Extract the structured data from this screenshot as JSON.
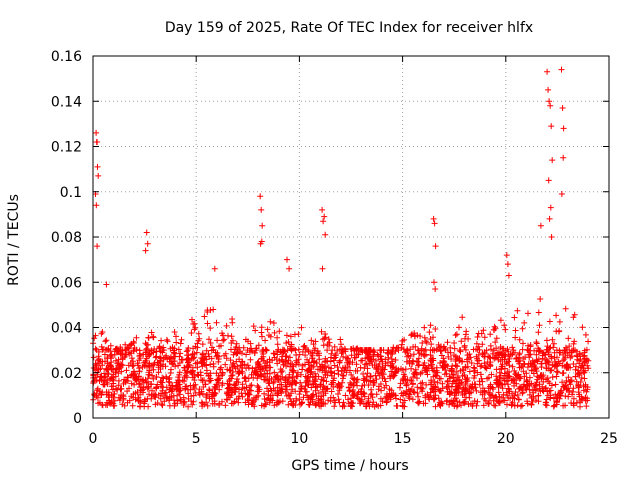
{
  "chart_data": {
    "type": "scatter",
    "title": "Day 159 of 2025, Rate Of TEC Index for receiver hlfx",
    "xlabel": "GPS time / hours",
    "ylabel": "ROTI / TECUs",
    "xlim": [
      0,
      25
    ],
    "ylim": [
      0,
      0.16
    ],
    "xticks": [
      0,
      5,
      10,
      15,
      20,
      25
    ],
    "xtick_labels": [
      "0",
      "5",
      "10",
      "15",
      "20",
      "25"
    ],
    "yticks": [
      0,
      0.02,
      0.04,
      0.06,
      0.08,
      0.1,
      0.12,
      0.14,
      0.16
    ],
    "ytick_labels": [
      "0",
      "0.02",
      "0.04",
      "0.06",
      "0.08",
      "0.1",
      "0.12",
      "0.14",
      "0.16"
    ],
    "grid": true,
    "marker": "+",
    "color": "#ff0000",
    "series": [
      {
        "name": "ROTI",
        "dense_band": {
          "x_range": [
            0,
            24
          ],
          "typical_range": [
            0.005,
            0.03
          ],
          "upper_envelope": [
            [
              0,
              0.045
            ],
            [
              1,
              0.03
            ],
            [
              2,
              0.035
            ],
            [
              3,
              0.04
            ],
            [
              4,
              0.042
            ],
            [
              5,
              0.045
            ],
            [
              6,
              0.05
            ],
            [
              7,
              0.045
            ],
            [
              8,
              0.04
            ],
            [
              9,
              0.045
            ],
            [
              10,
              0.04
            ],
            [
              11,
              0.04
            ],
            [
              12,
              0.035
            ],
            [
              13,
              0.03
            ],
            [
              14,
              0.03
            ],
            [
              15,
              0.035
            ],
            [
              16,
              0.04
            ],
            [
              17,
              0.045
            ],
            [
              18,
              0.045
            ],
            [
              19,
              0.04
            ],
            [
              20,
              0.045
            ],
            [
              21,
              0.05
            ],
            [
              22,
              0.06
            ],
            [
              23,
              0.055
            ],
            [
              24,
              0.035
            ]
          ]
        },
        "x": [
          0.15,
          0.18,
          0.2,
          0.22,
          0.12,
          0.16,
          0.25,
          0.2,
          0.65,
          2.6,
          2.55,
          2.65,
          5.9,
          8.1,
          8.15,
          8.2,
          8.12,
          8.18,
          9.4,
          9.5,
          11.1,
          11.2,
          11.15,
          11.25,
          11.12,
          16.5,
          16.55,
          16.6,
          16.52,
          16.58,
          20.05,
          20.1,
          20.15,
          21.7,
          22.0,
          22.05,
          22.1,
          22.15,
          22.2,
          22.25,
          22.08,
          22.18,
          22.12,
          22.22,
          22.7,
          22.75,
          22.8,
          22.78,
          22.72
        ],
        "y": [
          0.126,
          0.122,
          0.122,
          0.111,
          0.099,
          0.094,
          0.107,
          0.076,
          0.059,
          0.082,
          0.074,
          0.077,
          0.066,
          0.098,
          0.092,
          0.085,
          0.077,
          0.078,
          0.07,
          0.066,
          0.092,
          0.089,
          0.087,
          0.081,
          0.066,
          0.088,
          0.086,
          0.076,
          0.06,
          0.057,
          0.072,
          0.068,
          0.063,
          0.085,
          0.153,
          0.145,
          0.14,
          0.138,
          0.129,
          0.114,
          0.105,
          0.093,
          0.088,
          0.08,
          0.154,
          0.137,
          0.128,
          0.115,
          0.099
        ]
      }
    ]
  }
}
